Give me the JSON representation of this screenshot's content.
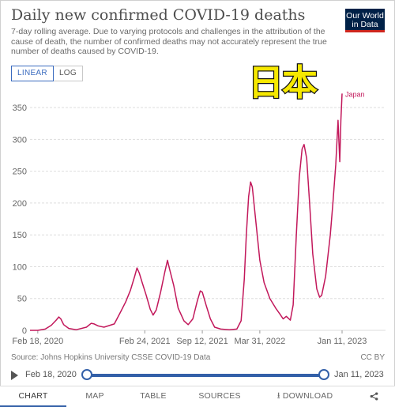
{
  "header": {
    "title": "Daily new confirmed COVID-19 deaths",
    "subtitle": "7-day rolling average. Due to varying protocols and challenges in the attribution of the cause of death, the number of confirmed deaths may not accurately represent the true number of deaths caused by COVID-19.",
    "logo_line1": "Our World",
    "logo_line2": "in Data",
    "logo_colors": {
      "background": "#002147",
      "stripe": "#ce261e"
    }
  },
  "scale_toggle": {
    "linear_label": "LINEAR",
    "log_label": "LOG",
    "active": "linear"
  },
  "overlay": {
    "text": "日本",
    "color": "#f6e800",
    "outline": "#111111"
  },
  "chart_data": {
    "type": "line",
    "title": "Daily new confirmed COVID-19 deaths",
    "ylim": [
      0,
      370
    ],
    "yticks": [
      0,
      50,
      100,
      150,
      200,
      250,
      300,
      350
    ],
    "ytick_labels": [
      "0",
      "50",
      "100",
      "150",
      "200",
      "250",
      "300",
      "350"
    ],
    "xlim": [
      "2020-01-22",
      "2023-01-11"
    ],
    "xtick_labels": [
      {
        "label": "Feb 18, 2020",
        "date": "2020-02-18"
      },
      {
        "label": "Feb 24, 2021",
        "date": "2021-02-24"
      },
      {
        "label": "Sep 12, 2021",
        "date": "2021-09-12"
      },
      {
        "label": "Mar 31, 2022",
        "date": "2022-03-31"
      },
      {
        "label": "Jan 11, 2023",
        "date": "2023-01-11"
      }
    ],
    "grid": "horizontal",
    "legend": "end-label",
    "series": [
      {
        "name": "Japan",
        "color": "#c2185b",
        "points": [
          [
            "2020-01-22",
            0
          ],
          [
            "2020-02-18",
            0
          ],
          [
            "2020-03-15",
            2
          ],
          [
            "2020-04-05",
            8
          ],
          [
            "2020-04-22",
            16
          ],
          [
            "2020-05-01",
            21
          ],
          [
            "2020-05-08",
            18
          ],
          [
            "2020-05-18",
            9
          ],
          [
            "2020-06-05",
            3
          ],
          [
            "2020-07-01",
            1
          ],
          [
            "2020-08-05",
            5
          ],
          [
            "2020-08-22",
            11
          ],
          [
            "2020-09-01",
            10
          ],
          [
            "2020-09-15",
            7
          ],
          [
            "2020-10-05",
            5
          ],
          [
            "2020-11-10",
            10
          ],
          [
            "2020-12-01",
            28
          ],
          [
            "2020-12-20",
            45
          ],
          [
            "2021-01-05",
            63
          ],
          [
            "2021-01-20",
            85
          ],
          [
            "2021-01-28",
            98
          ],
          [
            "2021-02-05",
            90
          ],
          [
            "2021-02-15",
            75
          ],
          [
            "2021-03-01",
            55
          ],
          [
            "2021-03-15",
            33
          ],
          [
            "2021-03-25",
            24
          ],
          [
            "2021-04-05",
            32
          ],
          [
            "2021-04-20",
            60
          ],
          [
            "2021-05-05",
            92
          ],
          [
            "2021-05-14",
            110
          ],
          [
            "2021-05-22",
            95
          ],
          [
            "2021-06-05",
            70
          ],
          [
            "2021-06-20",
            35
          ],
          [
            "2021-07-10",
            15
          ],
          [
            "2021-07-25",
            9
          ],
          [
            "2021-08-10",
            18
          ],
          [
            "2021-08-25",
            45
          ],
          [
            "2021-09-05",
            62
          ],
          [
            "2021-09-12",
            60
          ],
          [
            "2021-09-25",
            40
          ],
          [
            "2021-10-10",
            18
          ],
          [
            "2021-10-25",
            5
          ],
          [
            "2021-11-15",
            2
          ],
          [
            "2021-12-15",
            1
          ],
          [
            "2022-01-10",
            2
          ],
          [
            "2022-01-25",
            15
          ],
          [
            "2022-02-05",
            80
          ],
          [
            "2022-02-12",
            150
          ],
          [
            "2022-02-20",
            210
          ],
          [
            "2022-02-27",
            233
          ],
          [
            "2022-03-05",
            225
          ],
          [
            "2022-03-15",
            180
          ],
          [
            "2022-03-31",
            110
          ],
          [
            "2022-04-15",
            75
          ],
          [
            "2022-05-05",
            50
          ],
          [
            "2022-05-25",
            35
          ],
          [
            "2022-06-10",
            25
          ],
          [
            "2022-06-20",
            18
          ],
          [
            "2022-07-01",
            22
          ],
          [
            "2022-07-15",
            16
          ],
          [
            "2022-07-25",
            40
          ],
          [
            "2022-08-05",
            150
          ],
          [
            "2022-08-15",
            240
          ],
          [
            "2022-08-25",
            285
          ],
          [
            "2022-09-01",
            292
          ],
          [
            "2022-09-10",
            270
          ],
          [
            "2022-09-20",
            200
          ],
          [
            "2022-10-01",
            120
          ],
          [
            "2022-10-15",
            65
          ],
          [
            "2022-10-25",
            52
          ],
          [
            "2022-11-01",
            55
          ],
          [
            "2022-11-15",
            85
          ],
          [
            "2022-12-01",
            150
          ],
          [
            "2022-12-10",
            200
          ],
          [
            "2022-12-20",
            260
          ],
          [
            "2022-12-28",
            330
          ],
          [
            "2023-01-03",
            265
          ],
          [
            "2023-01-07",
            330
          ],
          [
            "2023-01-11",
            372
          ]
        ]
      }
    ]
  },
  "footer": {
    "source": "Source: Johns Hopkins University CSSE COVID-19 Data",
    "license": "CC BY",
    "timeline_start": "Feb 18, 2020",
    "timeline_end": "Jan 11, 2023",
    "timeline_start_fraction": 0,
    "timeline_end_fraction": 1
  },
  "tabs": [
    {
      "id": "chart",
      "label": "CHART",
      "icon": ""
    },
    {
      "id": "map",
      "label": "MAP",
      "icon": ""
    },
    {
      "id": "table",
      "label": "TABLE",
      "icon": ""
    },
    {
      "id": "sources",
      "label": "SOURCES",
      "icon": ""
    },
    {
      "id": "download",
      "label": "DOWNLOAD",
      "icon": "download-icon"
    },
    {
      "id": "share",
      "label": "",
      "icon": "share-icon"
    }
  ],
  "active_tab": "chart"
}
